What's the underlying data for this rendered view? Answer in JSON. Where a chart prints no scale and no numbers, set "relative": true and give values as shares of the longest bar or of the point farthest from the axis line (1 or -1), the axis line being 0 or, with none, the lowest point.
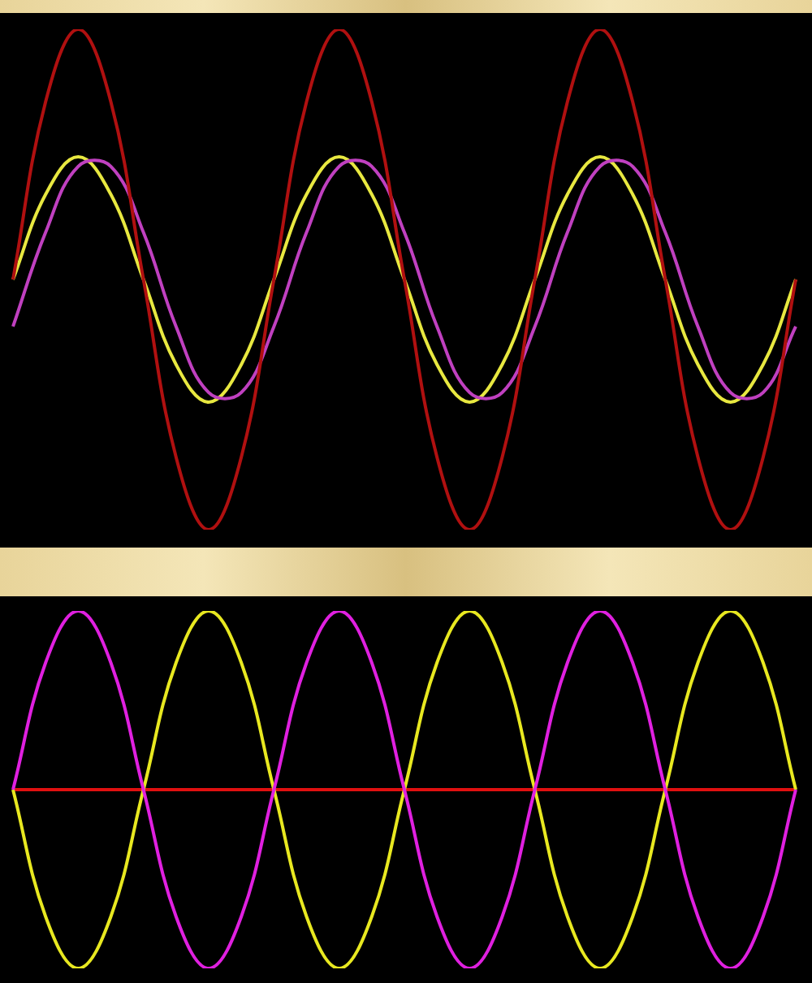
{
  "chart_data": [
    {
      "type": "line",
      "relative": true,
      "legend": false,
      "marker": "none",
      "line_style": "solid",
      "categories": [
        null,
        null,
        null,
        null,
        null,
        null,
        null,
        null,
        null,
        null,
        null,
        null,
        null,
        null,
        null,
        null,
        null,
        null,
        null,
        null,
        null,
        null,
        null,
        null,
        null
      ],
      "series": [
        {
          "color": "#b01010",
          "values": [
            0.5,
            0.855,
            1,
            0.855,
            0.5,
            0.145,
            0,
            0.145,
            0.5,
            0.855,
            1,
            0.855,
            0.5,
            0.145,
            0,
            0.145,
            0.5,
            0.855,
            1,
            0.855,
            0.5,
            0.145,
            0,
            0.145,
            0.5
          ]
        },
        {
          "color": "#c040c0",
          "values": [
            0.406,
            0.594,
            0.726,
            0.726,
            0.594,
            0.406,
            0.274,
            0.274,
            0.406,
            0.594,
            0.726,
            0.726,
            0.594,
            0.406,
            0.274,
            0.274,
            0.406,
            0.594,
            0.726,
            0.726,
            0.594,
            0.406,
            0.274,
            0.274,
            0.406
          ]
        },
        {
          "color": "#e8e840",
          "values": [
            0.5,
            0.67,
            0.745,
            0.67,
            0.5,
            0.33,
            0.255,
            0.33,
            0.5,
            0.67,
            0.745,
            0.67,
            0.5,
            0.33,
            0.255,
            0.33,
            0.5,
            0.67,
            0.745,
            0.67,
            0.5,
            0.33,
            0.255,
            0.33,
            0.5
          ]
        }
      ]
    },
    {
      "type": "line",
      "relative": true,
      "legend": false,
      "marker": "none",
      "line_style": "solid",
      "categories": [
        null,
        null,
        null,
        null,
        null,
        null,
        null,
        null,
        null,
        null,
        null,
        null,
        null,
        null,
        null,
        null,
        null,
        null,
        null,
        null,
        null,
        null,
        null,
        null,
        null
      ],
      "series": [
        {
          "color": "#e020e0",
          "values": [
            0.5,
            0.855,
            1,
            0.855,
            0.5,
            0.145,
            0,
            0.145,
            0.5,
            0.855,
            1,
            0.855,
            0.5,
            0.145,
            0,
            0.145,
            0.5,
            0.855,
            1,
            0.855,
            0.5,
            0.145,
            0,
            0.145,
            0.5
          ]
        },
        {
          "color": "#e8e820",
          "values": [
            0.5,
            0.145,
            0,
            0.145,
            0.5,
            0.855,
            1,
            0.855,
            0.5,
            0.145,
            0,
            0.145,
            0.5,
            0.855,
            1,
            0.855,
            0.5,
            0.145,
            0,
            0.145,
            0.5,
            0.855,
            1,
            0.855,
            0.5
          ]
        },
        {
          "color": "#e01010",
          "values": [
            0.5,
            0.5,
            0.5,
            0.5,
            0.5,
            0.5,
            0.5,
            0.5,
            0.5,
            0.5,
            0.5,
            0.5,
            0.5,
            0.5,
            0.5,
            0.5,
            0.5,
            0.5,
            0.5,
            0.5,
            0.5,
            0.5,
            0.5,
            0.5,
            0.5
          ]
        }
      ]
    }
  ]
}
